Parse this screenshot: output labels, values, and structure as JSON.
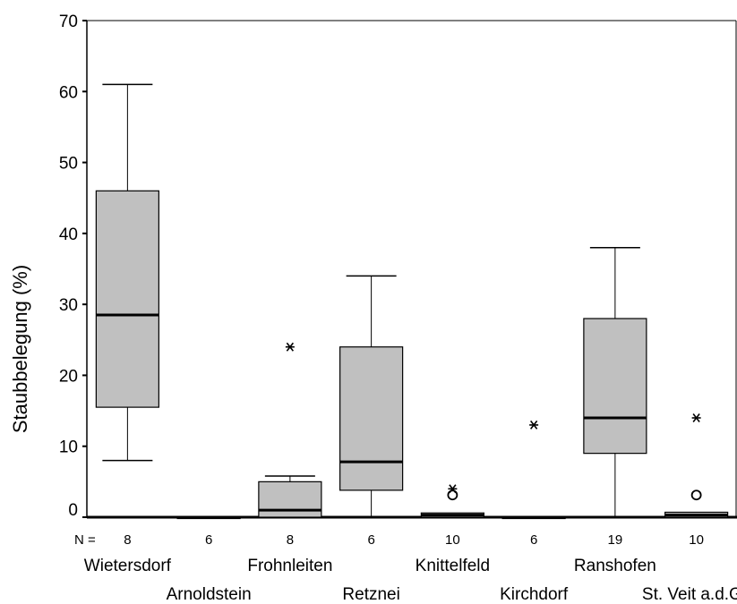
{
  "chart_data": {
    "type": "boxplot",
    "ylabel": "Staubbelegung (%)",
    "ylim": [
      0,
      70
    ],
    "yticks": [
      0,
      10,
      20,
      30,
      40,
      50,
      60,
      70
    ],
    "n_label": "N =",
    "categories": [
      "Wietersdorf",
      "Arnoldstein",
      "Frohnleiten",
      "Retznei",
      "Knittelfeld",
      "Kirchdorf",
      "Ranshofen",
      "St. Veit a.d.Gl."
    ],
    "n": [
      "8",
      "6",
      "8",
      "6",
      "10",
      "6",
      "19",
      "10"
    ],
    "boxes": [
      {
        "min": 8,
        "q1": 15.5,
        "median": 28.5,
        "q3": 46,
        "max": 61,
        "outliers": [],
        "extremes": []
      },
      {
        "min": 0,
        "q1": 0,
        "median": 0,
        "q3": 0,
        "max": 0,
        "outliers": [],
        "extremes": []
      },
      {
        "min": 0,
        "q1": 0,
        "median": 1,
        "q3": 5,
        "max": 5.8,
        "outliers": [],
        "extremes": [
          24
        ]
      },
      {
        "min": 0,
        "q1": 3.8,
        "median": 7.8,
        "q3": 24,
        "max": 34,
        "outliers": [],
        "extremes": []
      },
      {
        "min": 0,
        "q1": 0,
        "median": 0.3,
        "q3": 0.6,
        "max": 0.6,
        "outliers": [
          3
        ],
        "extremes": [
          4
        ]
      },
      {
        "min": 0,
        "q1": 0,
        "median": 0,
        "q3": 0,
        "max": 0,
        "outliers": [],
        "extremes": [
          13
        ]
      },
      {
        "min": 0,
        "q1": 9,
        "median": 14,
        "q3": 28,
        "max": 38,
        "outliers": [],
        "extremes": []
      },
      {
        "min": 0,
        "q1": 0,
        "median": 0.3,
        "q3": 0.7,
        "max": 0.7,
        "outliers": [
          3
        ],
        "extremes": [
          14
        ]
      }
    ],
    "box_color": "#c0c0c0"
  }
}
